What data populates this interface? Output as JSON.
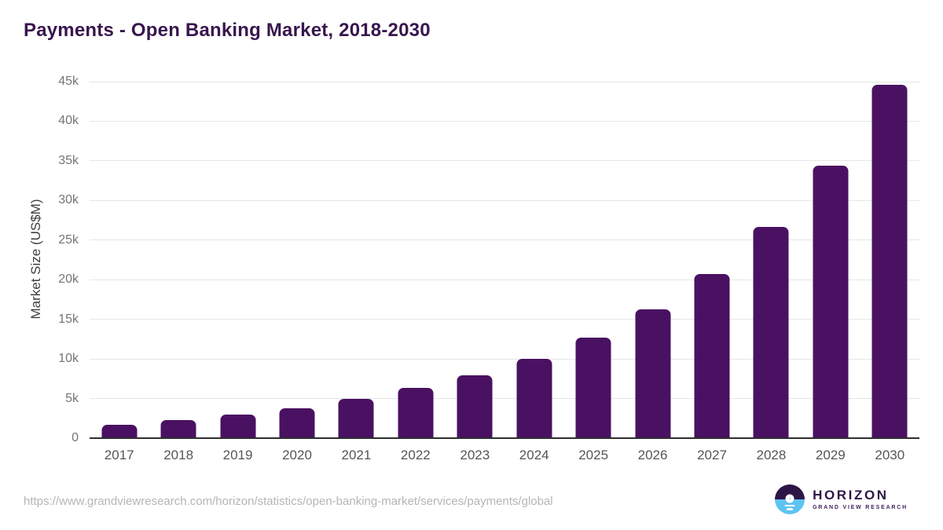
{
  "chart_data": {
    "type": "bar",
    "title": "Payments - Open Banking Market, 2018-2030",
    "categories": [
      "2017",
      "2018",
      "2019",
      "2020",
      "2021",
      "2022",
      "2023",
      "2024",
      "2025",
      "2026",
      "2027",
      "2028",
      "2029",
      "2030"
    ],
    "values": [
      1700,
      2300,
      3000,
      3800,
      5000,
      6300,
      7900,
      10050,
      12700,
      16250,
      20700,
      26700,
      34400,
      44600
    ],
    "xlabel": "",
    "ylabel": "Market Size (US$M)",
    "ylim": [
      0,
      45000
    ],
    "ytick_step": 5000,
    "ytick_labels": [
      "0",
      "5k",
      "10k",
      "15k",
      "20k",
      "25k",
      "30k",
      "35k",
      "40k",
      "45k"
    ],
    "grid": true,
    "legend_position": "none",
    "bar_color": "#4a1162"
  },
  "colors": {
    "title_text": "#38164e",
    "bar": "#4a1162",
    "gridline": "#e6e6e6",
    "axis_line": "#2e2e2e",
    "ytick_text": "#757575",
    "xtick_text": "#565656",
    "url_text": "#b5b5b5",
    "logo_purple": "#2d1646",
    "logo_blue": "#5fc3f1"
  },
  "footer": {
    "source_url": "https://www.grandviewresearch.com/horizon/statistics/open-banking-market/services/payments/global",
    "logo": {
      "brand": "HORIZON",
      "subtitle": "GRAND VIEW RESEARCH"
    }
  }
}
